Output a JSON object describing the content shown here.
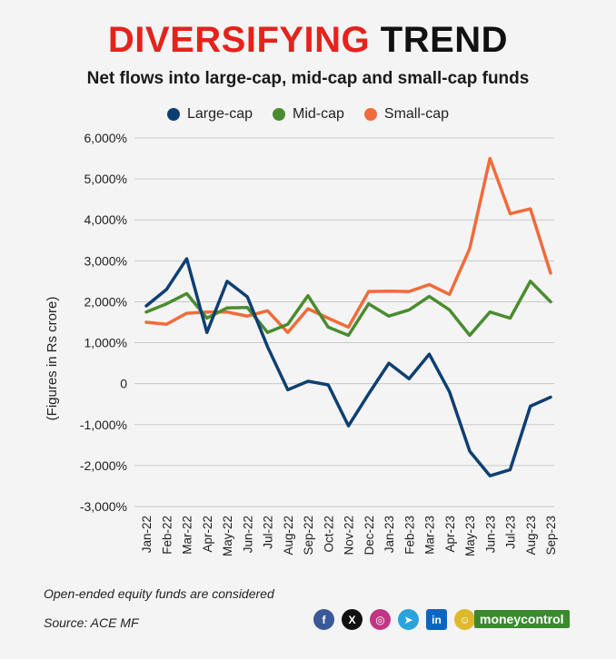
{
  "header": {
    "title_highlight": "DIVERSIFYING",
    "title_rest": "TREND",
    "subtitle": "Net flows into large-cap, mid-cap and small-cap funds"
  },
  "colors": {
    "large": "#0e3f72",
    "mid": "#4a8c2f",
    "small": "#f26b3a",
    "accent": "#e3231c"
  },
  "chart_data": {
    "type": "line",
    "title": "Net flows into large-cap, mid-cap and small-cap funds",
    "xlabel": "",
    "ylabel": "(Figures in Rs crore)",
    "ylim": [
      -3000,
      6000
    ],
    "yticks": [
      6000,
      5000,
      4000,
      3000,
      2000,
      1000,
      0,
      -1000,
      -2000,
      -3000
    ],
    "ytick_labels": [
      "6,000%",
      "5,000%",
      "4,000%",
      "3,000%",
      "2,000%",
      "1,000%",
      "0",
      "-1,000%",
      "-2,000%",
      "-3,000%"
    ],
    "grid": true,
    "legend": "top-center",
    "categories": [
      "Jan-22",
      "Feb-22",
      "Mar-22",
      "Apr-22",
      "May-22",
      "Jun-22",
      "Jul-22",
      "Aug-22",
      "Sep-22",
      "Oct-22",
      "Nov-22",
      "Dec-22",
      "Jan-23",
      "Feb-23",
      "Mar-23",
      "Apr-23",
      "May-23",
      "Jun-23",
      "Jul-23",
      "Aug-23",
      "Sep-23"
    ],
    "series": [
      {
        "name": "Large-cap",
        "key": "large",
        "values": [
          1900,
          2300,
          3050,
          1250,
          2500,
          2120,
          900,
          -150,
          60,
          -30,
          -1030,
          -250,
          500,
          120,
          720,
          -200,
          -1650,
          -2250,
          -2100,
          -550,
          -330
        ]
      },
      {
        "name": "Mid-cap",
        "key": "mid",
        "values": [
          1750,
          1950,
          2200,
          1600,
          1850,
          1860,
          1250,
          1450,
          2150,
          1380,
          1180,
          1950,
          1650,
          1800,
          2130,
          1800,
          1180,
          1750,
          1600,
          2500,
          2000
        ]
      },
      {
        "name": "Small-cap",
        "key": "small",
        "values": [
          1500,
          1450,
          1720,
          1750,
          1750,
          1650,
          1780,
          1250,
          1830,
          1600,
          1380,
          2250,
          2260,
          2250,
          2420,
          2180,
          3300,
          5500,
          4150,
          4270,
          2700
        ]
      }
    ]
  },
  "footer": {
    "note": "Open-ended equity funds are considered",
    "source": "Source: ACE MF",
    "brand": "moneycontrol",
    "social": [
      "f",
      "X",
      "◎",
      "➤",
      "in",
      "☺"
    ]
  }
}
